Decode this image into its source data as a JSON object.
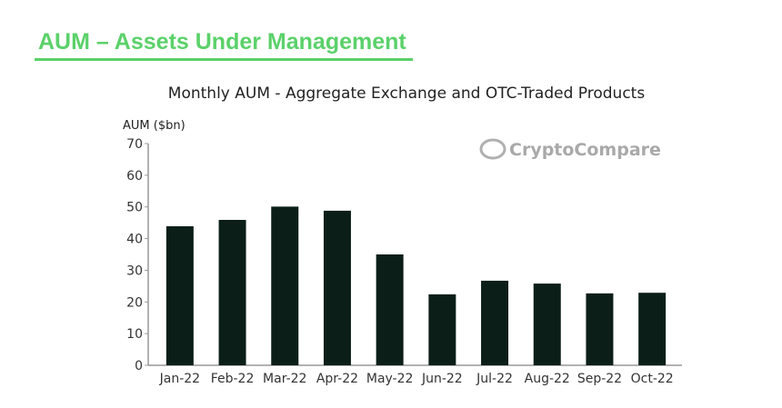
{
  "header": {
    "title": "AUM – Assets Under Management"
  },
  "colors": {
    "accent": "#5bd16a",
    "bar": "#0b1f18"
  },
  "watermark": "CryptoCompare",
  "chart_data": {
    "type": "bar",
    "title": "Monthly AUM - Aggregate Exchange and OTC-Traded Products",
    "xlabel": "",
    "ylabel": "AUM ($bn)",
    "ylim": [
      0,
      70
    ],
    "yticks": [
      0,
      10,
      20,
      30,
      40,
      50,
      60,
      70
    ],
    "categories": [
      "Jan-22",
      "Feb-22",
      "Mar-22",
      "Apr-22",
      "May-22",
      "Jun-22",
      "Jul-22",
      "Aug-22",
      "Sep-22",
      "Oct-22"
    ],
    "values": [
      43.9,
      45.9,
      50.1,
      48.8,
      35.0,
      22.4,
      26.7,
      25.8,
      22.7,
      22.9
    ],
    "grid": false
  }
}
